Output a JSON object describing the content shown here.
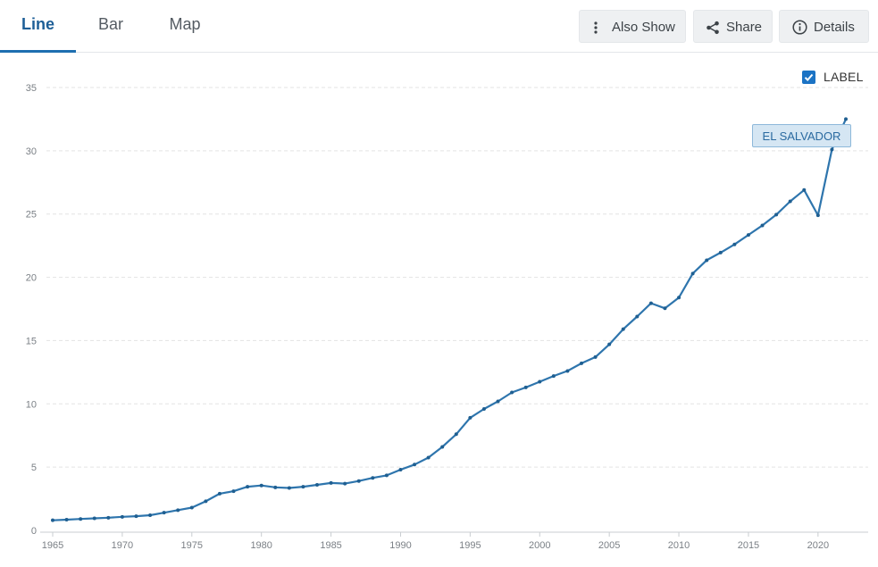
{
  "tabs": [
    {
      "label": "Line",
      "active": true
    },
    {
      "label": "Bar",
      "active": false
    },
    {
      "label": "Map",
      "active": false
    }
  ],
  "toolbar": {
    "also_show_label": "Also Show",
    "share_label": "Share",
    "details_label": "Details",
    "also_show_icon": "vertical-dots-icon",
    "share_icon": "share-icon",
    "details_icon": "info-icon"
  },
  "label_toggle": {
    "label": "LABEL",
    "checked": true
  },
  "colors": {
    "accent": "#1e6fb0",
    "line": "#2e75ad",
    "grid": "#e3e3e3"
  },
  "chart_data": {
    "type": "line",
    "title": "",
    "xlabel": "",
    "ylabel": "",
    "xlim": [
      1965,
      2022
    ],
    "ylim": [
      0,
      35
    ],
    "y_ticks": [
      0,
      5,
      10,
      15,
      20,
      25,
      30,
      35
    ],
    "x_ticks": [
      1965,
      1970,
      1975,
      1980,
      1985,
      1990,
      1995,
      2000,
      2005,
      2010,
      2015,
      2020
    ],
    "grid": true,
    "series": [
      {
        "name": "EL SALVADOR",
        "x": [
          1965,
          1966,
          1967,
          1968,
          1969,
          1970,
          1971,
          1972,
          1973,
          1974,
          1975,
          1976,
          1977,
          1978,
          1979,
          1980,
          1981,
          1982,
          1983,
          1984,
          1985,
          1986,
          1987,
          1988,
          1989,
          1990,
          1991,
          1992,
          1993,
          1994,
          1995,
          1996,
          1997,
          1998,
          1999,
          2000,
          2001,
          2002,
          2003,
          2004,
          2005,
          2006,
          2007,
          2008,
          2009,
          2010,
          2011,
          2012,
          2013,
          2014,
          2015,
          2016,
          2017,
          2018,
          2019,
          2020,
          2021,
          2022
        ],
        "values": [
          0.8,
          0.85,
          0.9,
          0.95,
          1.0,
          1.07,
          1.12,
          1.2,
          1.4,
          1.6,
          1.8,
          2.3,
          2.9,
          3.1,
          3.45,
          3.55,
          3.4,
          3.35,
          3.45,
          3.6,
          3.75,
          3.7,
          3.9,
          4.15,
          4.35,
          4.8,
          5.2,
          5.75,
          6.6,
          7.6,
          8.9,
          9.6,
          10.2,
          10.9,
          11.3,
          11.75,
          12.2,
          12.6,
          13.2,
          13.7,
          14.7,
          15.9,
          16.9,
          17.95,
          17.55,
          18.4,
          20.3,
          21.35,
          21.95,
          22.6,
          23.35,
          24.1,
          24.95,
          26.0,
          26.9,
          24.9,
          30.1,
          32.5
        ]
      }
    ]
  }
}
